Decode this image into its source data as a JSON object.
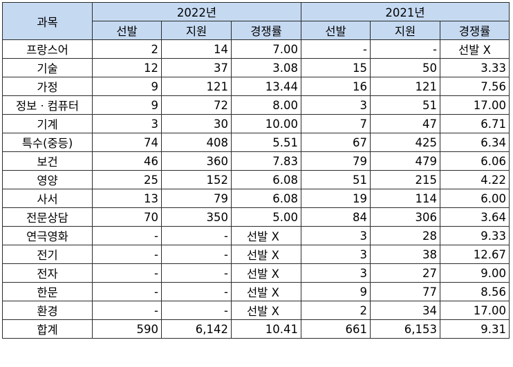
{
  "table": {
    "subject_header": "과목",
    "year_headers": [
      "2022년",
      "2021년"
    ],
    "sub_headers": [
      "선발",
      "지원",
      "경쟁률",
      "선발",
      "지원",
      "경쟁률"
    ],
    "rows": [
      {
        "subject": "프랑스어",
        "cells": [
          "2",
          "14",
          "7.00",
          "-",
          "-",
          "선발 X"
        ]
      },
      {
        "subject": "기술",
        "cells": [
          "12",
          "37",
          "3.08",
          "15",
          "50",
          "3.33"
        ]
      },
      {
        "subject": "가정",
        "cells": [
          "9",
          "121",
          "13.44",
          "16",
          "121",
          "7.56"
        ]
      },
      {
        "subject": "정보ㆍ컴퓨터",
        "cells": [
          "9",
          "72",
          "8.00",
          "3",
          "51",
          "17.00"
        ]
      },
      {
        "subject": "기계",
        "cells": [
          "3",
          "30",
          "10.00",
          "7",
          "47",
          "6.71"
        ]
      },
      {
        "subject": "특수(중등)",
        "cells": [
          "74",
          "408",
          "5.51",
          "67",
          "425",
          "6.34"
        ]
      },
      {
        "subject": "보건",
        "cells": [
          "46",
          "360",
          "7.83",
          "79",
          "479",
          "6.06"
        ]
      },
      {
        "subject": "영양",
        "cells": [
          "25",
          "152",
          "6.08",
          "51",
          "215",
          "4.22"
        ]
      },
      {
        "subject": "사서",
        "cells": [
          "13",
          "79",
          "6.08",
          "19",
          "114",
          "6.00"
        ]
      },
      {
        "subject": "전문상담",
        "cells": [
          "70",
          "350",
          "5.00",
          "84",
          "306",
          "3.64"
        ]
      },
      {
        "subject": "연극영화",
        "cells": [
          "-",
          "-",
          "선발 X",
          "3",
          "28",
          "9.33"
        ]
      },
      {
        "subject": "전기",
        "cells": [
          "-",
          "-",
          "선발 X",
          "3",
          "38",
          "12.67"
        ]
      },
      {
        "subject": "전자",
        "cells": [
          "-",
          "-",
          "선발 X",
          "3",
          "27",
          "9.00"
        ]
      },
      {
        "subject": "한문",
        "cells": [
          "-",
          "-",
          "선발 X",
          "9",
          "77",
          "8.56"
        ]
      },
      {
        "subject": "환경",
        "cells": [
          "-",
          "-",
          "선발 X",
          "2",
          "34",
          "17.00"
        ]
      },
      {
        "subject": "합계",
        "cells": [
          "590",
          "6,142",
          "10.41",
          "661",
          "6,153",
          "9.31"
        ]
      }
    ]
  },
  "colors": {
    "header_bg": "#c5d9f1",
    "border": "#2b2b2b"
  }
}
